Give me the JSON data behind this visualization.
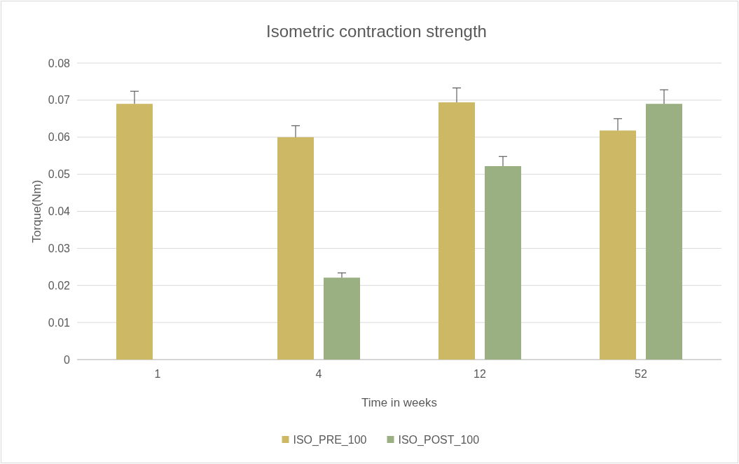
{
  "chart_data": {
    "type": "bar",
    "title": "Isometric contraction strength",
    "xlabel": "Time in weeks",
    "ylabel": "Torque(Nm)",
    "categories": [
      "1",
      "4",
      "12",
      "52"
    ],
    "series": [
      {
        "name": "ISO_PRE_100",
        "color": "#cdb865",
        "values": [
          0.069,
          0.06,
          0.0694,
          0.0618
        ],
        "errors": [
          [
            0.069,
            0.0724
          ],
          [
            0.06,
            0.0631
          ],
          [
            0.0694,
            0.0733
          ],
          [
            0.0618,
            0.065
          ]
        ]
      },
      {
        "name": "ISO_POST_100",
        "color": "#9bb082",
        "values": [
          null,
          0.0221,
          0.0522,
          0.069
        ],
        "errors": [
          null,
          [
            0.0221,
            0.0234
          ],
          [
            0.0522,
            0.0548
          ],
          [
            0.069,
            0.0728
          ]
        ]
      }
    ],
    "ylim": [
      0,
      0.08
    ],
    "yticks": [
      0,
      0.01,
      0.02,
      0.03,
      0.04,
      0.05,
      0.06,
      0.07,
      0.08
    ],
    "grid": "y",
    "legend": "bottom"
  }
}
